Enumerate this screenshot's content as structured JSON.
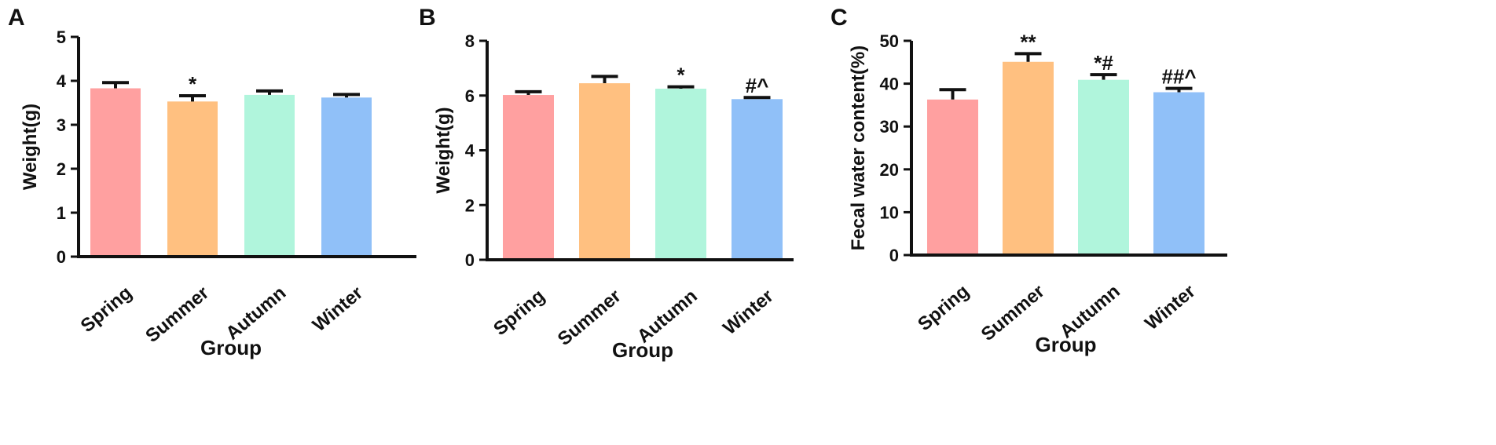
{
  "chart_data": [
    {
      "type": "bar",
      "panel": "A",
      "categories": [
        "Spring",
        "Summer",
        "Autumn",
        "Winter"
      ],
      "values": [
        3.83,
        3.53,
        3.68,
        3.62
      ],
      "errors": [
        0.13,
        0.13,
        0.09,
        0.07
      ],
      "annotations": [
        "",
        "*",
        "",
        ""
      ],
      "xlabel": "Group",
      "ylabel": "Weight(g)",
      "ylim": [
        0,
        5
      ],
      "yticks": [
        0,
        1,
        2,
        3,
        4,
        5
      ],
      "colors": [
        "#ffa0a0",
        "#ffc080",
        "#b0f5dc",
        "#90c0f8"
      ]
    },
    {
      "type": "bar",
      "panel": "B",
      "categories": [
        "Spring",
        "Summer",
        "Autumn",
        "Winter"
      ],
      "values": [
        6.02,
        6.45,
        6.25,
        5.87
      ],
      "errors": [
        0.12,
        0.25,
        0.07,
        0.06
      ],
      "annotations": [
        "",
        "",
        "*",
        "#^"
      ],
      "xlabel": "Group",
      "ylabel": "Weight(g)",
      "ylim": [
        0,
        8
      ],
      "yticks": [
        0,
        2,
        4,
        6,
        8
      ],
      "colors": [
        "#ffa0a0",
        "#ffc080",
        "#b0f5dc",
        "#90c0f8"
      ]
    },
    {
      "type": "bar",
      "panel": "C",
      "categories": [
        "Spring",
        "Summer",
        "Autumn",
        "Winter"
      ],
      "values": [
        36.3,
        45.1,
        40.9,
        38.0
      ],
      "errors": [
        2.3,
        1.9,
        1.2,
        0.9
      ],
      "annotations": [
        "",
        "**",
        "*#",
        "##^"
      ],
      "xlabel": "Group",
      "ylabel": "Fecal water content(%)",
      "ylim": [
        0,
        50
      ],
      "yticks": [
        0,
        10,
        20,
        30,
        40,
        50
      ],
      "colors": [
        "#ffa0a0",
        "#ffc080",
        "#b0f5dc",
        "#90c0f8"
      ]
    }
  ]
}
